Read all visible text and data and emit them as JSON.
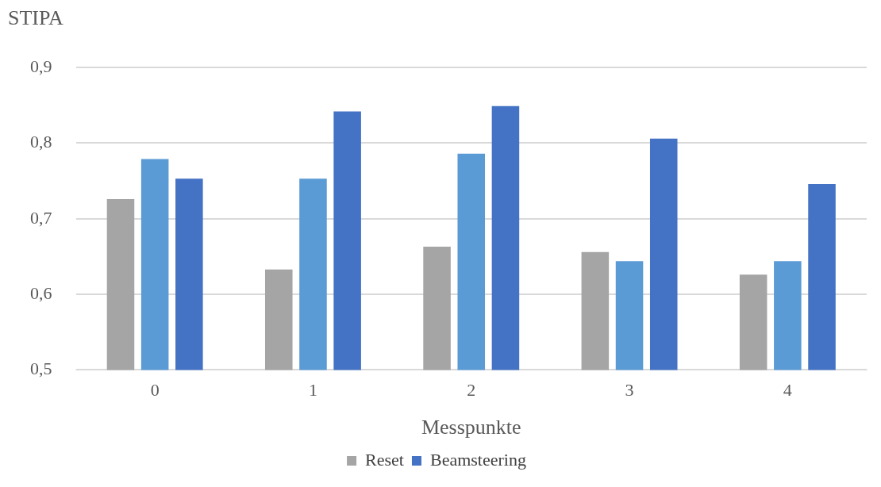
{
  "chart_data": {
    "type": "bar",
    "ylabel": "STIPA",
    "xlabel": "Messpunkte",
    "categories": [
      "0",
      "1",
      "2",
      "3",
      "4"
    ],
    "series": [
      {
        "name": "Reset",
        "color": "#a5a5a5",
        "values": [
          0.726,
          0.633,
          0.663,
          0.656,
          0.626
        ]
      },
      {
        "color": "#5b9bd5",
        "values": [
          0.779,
          0.753,
          0.786,
          0.644,
          0.644
        ]
      },
      {
        "name": "Beamsteering",
        "color": "#4472c4",
        "values": [
          0.753,
          0.842,
          0.849,
          0.806,
          0.746
        ]
      }
    ],
    "ylim": [
      0.5,
      0.9
    ],
    "yticks": [
      {
        "value": 0.5,
        "label": "0,5"
      },
      {
        "value": 0.6,
        "label": "0,6"
      },
      {
        "value": 0.7,
        "label": "0,7"
      },
      {
        "value": 0.8,
        "label": "0,8"
      },
      {
        "value": 0.9,
        "label": "0,9"
      }
    ],
    "grid": "y",
    "legend": "bottom"
  }
}
